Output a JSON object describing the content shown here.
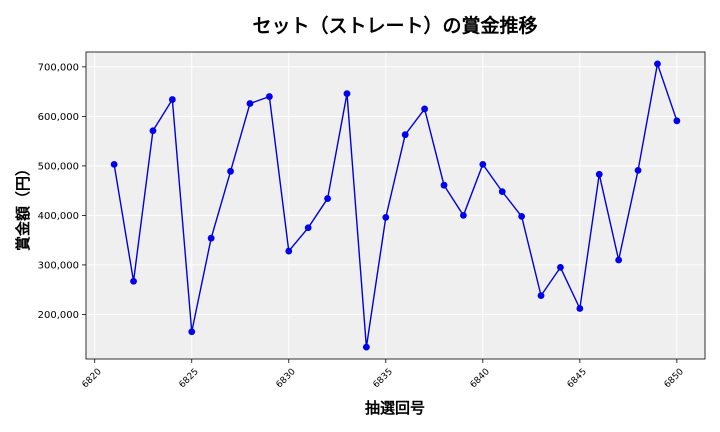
{
  "chart_data": {
    "type": "line",
    "title": "セット（ストレート）の賞金推移",
    "xlabel": "抽選回号",
    "ylabel": "賞金額（円）",
    "xlim": [
      6819.55,
      6851.45
    ],
    "ylim": [
      110000,
      730000
    ],
    "xticks": [
      6820,
      6825,
      6830,
      6835,
      6840,
      6845,
      6850
    ],
    "xtick_labels": [
      "6820",
      "6825",
      "6830",
      "6835",
      "6840",
      "6845",
      "6850"
    ],
    "yticks": [
      200000,
      300000,
      400000,
      500000,
      600000,
      700000
    ],
    "ytick_labels": [
      "200,000",
      "300,000",
      "400,000",
      "500,000",
      "600,000",
      "700,000"
    ],
    "grid": true,
    "colors": {
      "line": "#0000dd",
      "marker": "#0000ee",
      "plot_bg": "#efefef",
      "grid": "#ffffff"
    },
    "series": [
      {
        "x": [
          6821,
          6822,
          6823,
          6824,
          6825,
          6826,
          6827,
          6828,
          6829,
          6830,
          6831,
          6832,
          6833,
          6834,
          6835,
          6836,
          6837,
          6838,
          6839,
          6840,
          6841,
          6842,
          6843,
          6844,
          6845,
          6846,
          6847,
          6848,
          6849,
          6850
        ],
        "values": [
          503000,
          267000,
          571000,
          634000,
          165000,
          354000,
          489000,
          626000,
          640000,
          328000,
          375000,
          434000,
          646000,
          134000,
          396000,
          563000,
          615000,
          461000,
          400000,
          503000,
          448000,
          398000,
          238000,
          295000,
          212000,
          483000,
          310000,
          491000,
          706000,
          591000
        ]
      }
    ]
  }
}
